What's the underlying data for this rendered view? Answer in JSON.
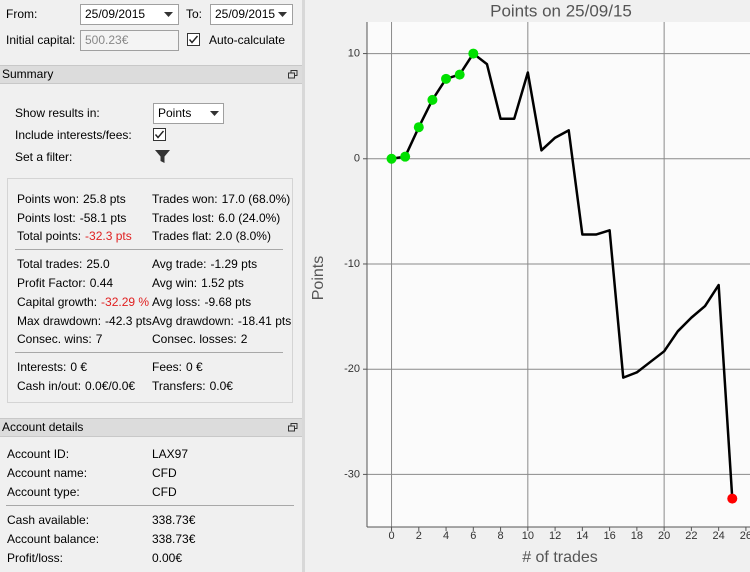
{
  "date_range": {
    "from_label": "From:",
    "from": "25/09/2015",
    "to_label": "To:",
    "to": "25/09/2015"
  },
  "capital": {
    "label": "Initial capital:",
    "value": "500.23€",
    "auto_calculate": "Auto-calculate"
  },
  "summary": {
    "title": "Summary",
    "show_results_label": "Show results in:",
    "show_results_value": "Points",
    "include_fees_label": "Include interests/fees:",
    "filter_label": "Set a filter:",
    "groups": [
      [
        [
          {
            "label": "Points won:",
            "value": "25.8 pts"
          },
          {
            "label": "Trades won:",
            "value": "17.0 (68.0%)"
          }
        ],
        [
          {
            "label": "Points lost:",
            "value": "-58.1 pts"
          },
          {
            "label": "Trades lost:",
            "value": "6.0 (24.0%)"
          }
        ],
        [
          {
            "label": "Total points:",
            "value": "-32.3 pts",
            "color": "#e02020"
          },
          {
            "label": "Trades flat:",
            "value": "2.0 (8.0%)"
          }
        ]
      ],
      [
        [
          {
            "label": "Total trades:",
            "value": "25.0"
          },
          {
            "label": "Avg trade:",
            "value": "-1.29 pts"
          }
        ],
        [
          {
            "label": "Profit Factor:",
            "value": "0.44"
          },
          {
            "label": "Avg win:",
            "value": "1.52 pts"
          }
        ],
        [
          {
            "label": "Capital growth:",
            "value": "-32.29 %",
            "color": "#e02020"
          },
          {
            "label": "Avg loss:",
            "value": "-9.68 pts"
          }
        ],
        [
          {
            "label": "Max drawdown:",
            "value": "-42.3 pts"
          },
          {
            "label": "Avg drawdown:",
            "value": "-18.41 pts"
          }
        ],
        [
          {
            "label": "Consec. wins:",
            "value": "7"
          },
          {
            "label": "Consec. losses:",
            "value": "2"
          }
        ]
      ],
      [
        [
          {
            "label": "Interests:",
            "value": "0 €"
          },
          {
            "label": "Fees:",
            "value": "0 €"
          }
        ],
        [
          {
            "label": "Cash in/out:",
            "value": "0.0€/0.0€"
          },
          {
            "label": "Transfers:",
            "value": "0.0€"
          }
        ]
      ]
    ]
  },
  "account": {
    "title": "Account details",
    "groups": [
      [
        {
          "label": "Account ID:",
          "value": "LAX97"
        },
        {
          "label": "Account name:",
          "value": "CFD"
        },
        {
          "label": "Account type:",
          "value": "CFD"
        }
      ],
      [
        {
          "label": "Cash available:",
          "value": "338.73€"
        },
        {
          "label": "Account balance:",
          "value": "338.73€"
        },
        {
          "label": "Profit/loss:",
          "value": "0.00€"
        }
      ]
    ]
  },
  "chart_data": {
    "type": "line",
    "title": "Points on 25/09/15",
    "x_label": "# of trades",
    "y_label": "Points",
    "x": [
      0,
      1,
      2,
      3,
      4,
      5,
      6,
      7,
      8,
      9,
      10,
      11,
      12,
      13,
      14,
      15,
      16,
      17,
      18,
      19,
      20,
      21,
      22,
      23,
      24,
      25
    ],
    "series": [
      {
        "color": "#000000",
        "values": [
          0,
          0.2,
          3.0,
          5.6,
          7.6,
          8.0,
          10.0,
          9.0,
          3.8,
          3.8,
          8.2,
          0.8,
          2.0,
          2.7,
          -7.2,
          -7.2,
          -6.8,
          -20.8,
          -20.3,
          -19.3,
          -18.3,
          -16.4,
          -15.1,
          -14.0,
          -12.0,
          -32.3
        ],
        "marker_colors": [
          "#00e000",
          "#00e000",
          "#00e000",
          "#00e000",
          "#00e000",
          "#00e000",
          "#00e000",
          null,
          null,
          null,
          null,
          null,
          null,
          null,
          null,
          null,
          null,
          null,
          null,
          null,
          null,
          null,
          null,
          null,
          null,
          "#ff0000"
        ]
      }
    ],
    "xlim": [
      -1.8,
      26.3
    ],
    "ylim": [
      -35,
      13
    ],
    "xticks": [
      0,
      2,
      4,
      6,
      8,
      10,
      12,
      14,
      16,
      18,
      20,
      22,
      24,
      26
    ],
    "yticks": [
      -30,
      -20,
      -10,
      0,
      10
    ],
    "xgrid": [
      0,
      10,
      20
    ]
  }
}
